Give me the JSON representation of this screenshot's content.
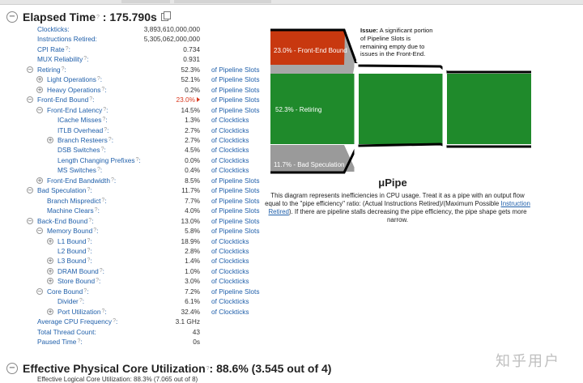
{
  "elapsed": {
    "title": "Elapsed Time",
    "value": "175.790s"
  },
  "metrics": [
    {
      "name": "Clockticks:",
      "value": "3,893,610,000,000",
      "unit": "",
      "indent": 0,
      "toggle": "",
      "hot": false
    },
    {
      "name": "Instructions Retired:",
      "value": "5,305,062,000,000",
      "unit": "",
      "indent": 0,
      "toggle": "",
      "hot": false
    },
    {
      "name": "CPI Rate",
      "value": "0.734",
      "unit": "",
      "indent": 0,
      "toggle": "",
      "hot": false,
      "help": true
    },
    {
      "name": "MUX Reliability",
      "value": "0.931",
      "unit": "",
      "indent": 0,
      "toggle": "",
      "hot": false,
      "help": true
    },
    {
      "name": "Retiring",
      "value": "52.3%",
      "unit": "of Pipeline Slots",
      "indent": 0,
      "toggle": "−",
      "hot": false,
      "help": true
    },
    {
      "name": "Light Operations",
      "value": "52.1%",
      "unit": "of Pipeline Slots",
      "indent": 1,
      "toggle": "+",
      "hot": false,
      "help": true
    },
    {
      "name": "Heavy Operations",
      "value": "0.2%",
      "unit": "of Pipeline Slots",
      "indent": 1,
      "toggle": "+",
      "hot": false,
      "help": true
    },
    {
      "name": "Front-End Bound",
      "value": "23.0%",
      "unit": "of Pipeline Slots",
      "indent": 0,
      "toggle": "−",
      "hot": true,
      "help": true
    },
    {
      "name": "Front-End Latency",
      "value": "14.5%",
      "unit": "of Pipeline Slots",
      "indent": 1,
      "toggle": "−",
      "hot": false,
      "help": true
    },
    {
      "name": "ICache Misses",
      "value": "1.3%",
      "unit": "of Clockticks",
      "indent": 2,
      "toggle": "",
      "hot": false,
      "help": true
    },
    {
      "name": "ITLB Overhead",
      "value": "2.7%",
      "unit": "of Clockticks",
      "indent": 2,
      "toggle": "",
      "hot": false,
      "help": true
    },
    {
      "name": "Branch Resteers",
      "value": "2.7%",
      "unit": "of Clockticks",
      "indent": 2,
      "toggle": "+",
      "hot": false,
      "help": true
    },
    {
      "name": "DSB Switches",
      "value": "4.5%",
      "unit": "of Clockticks",
      "indent": 2,
      "toggle": "",
      "hot": false,
      "help": true
    },
    {
      "name": "Length Changing Prefixes",
      "value": "0.0%",
      "unit": "of Clockticks",
      "indent": 2,
      "toggle": "",
      "hot": false,
      "help": true
    },
    {
      "name": "MS Switches",
      "value": "0.4%",
      "unit": "of Clockticks",
      "indent": 2,
      "toggle": "",
      "hot": false,
      "help": true
    },
    {
      "name": "Front-End Bandwidth",
      "value": "8.5%",
      "unit": "of Pipeline Slots",
      "indent": 1,
      "toggle": "+",
      "hot": false,
      "help": true
    },
    {
      "name": "Bad Speculation",
      "value": "11.7%",
      "unit": "of Pipeline Slots",
      "indent": 0,
      "toggle": "−",
      "hot": false,
      "help": true
    },
    {
      "name": "Branch Mispredict",
      "value": "7.7%",
      "unit": "of Pipeline Slots",
      "indent": 1,
      "toggle": "",
      "hot": false,
      "help": true
    },
    {
      "name": "Machine Clears",
      "value": "4.0%",
      "unit": "of Pipeline Slots",
      "indent": 1,
      "toggle": "",
      "hot": false,
      "help": true
    },
    {
      "name": "Back-End Bound",
      "value": "13.0%",
      "unit": "of Pipeline Slots",
      "indent": 0,
      "toggle": "−",
      "hot": false,
      "help": true
    },
    {
      "name": "Memory Bound",
      "value": "5.8%",
      "unit": "of Pipeline Slots",
      "indent": 1,
      "toggle": "−",
      "hot": false,
      "help": true
    },
    {
      "name": "L1 Bound",
      "value": "18.9%",
      "unit": "of Clockticks",
      "indent": 2,
      "toggle": "+",
      "hot": false,
      "help": true
    },
    {
      "name": "L2 Bound",
      "value": "2.8%",
      "unit": "of Clockticks",
      "indent": 2,
      "toggle": "",
      "hot": false,
      "help": true
    },
    {
      "name": "L3 Bound",
      "value": "1.4%",
      "unit": "of Clockticks",
      "indent": 2,
      "toggle": "+",
      "hot": false,
      "help": true
    },
    {
      "name": "DRAM Bound",
      "value": "1.0%",
      "unit": "of Clockticks",
      "indent": 2,
      "toggle": "+",
      "hot": false,
      "help": true
    },
    {
      "name": "Store Bound",
      "value": "3.0%",
      "unit": "of Clockticks",
      "indent": 2,
      "toggle": "+",
      "hot": false,
      "help": true
    },
    {
      "name": "Core Bound",
      "value": "7.2%",
      "unit": "of Pipeline Slots",
      "indent": 1,
      "toggle": "−",
      "hot": false,
      "help": true
    },
    {
      "name": "Divider",
      "value": "6.1%",
      "unit": "of Clockticks",
      "indent": 2,
      "toggle": "",
      "hot": false,
      "help": true
    },
    {
      "name": "Port Utilization",
      "value": "32.4%",
      "unit": "of Clockticks",
      "indent": 2,
      "toggle": "+",
      "hot": false,
      "help": true
    },
    {
      "name": "Average CPU Frequency",
      "value": "3.1 GHz",
      "unit": "",
      "indent": 0,
      "toggle": "",
      "hot": false,
      "help": true
    },
    {
      "name": "Total Thread Count:",
      "value": "43",
      "unit": "",
      "indent": 0,
      "toggle": "",
      "hot": false
    },
    {
      "name": "Paused Time",
      "value": "0s",
      "unit": "",
      "indent": 0,
      "toggle": "",
      "hot": false,
      "help": true
    }
  ],
  "pipe": {
    "title": "μPipe",
    "frontend_label": "23.0% - Front-End Bound",
    "retiring_label": "52.3% - Retiring",
    "badspec_label": "11.7% - Bad Speculation",
    "issue_bold": "Issue:",
    "issue_lines": [
      " A significant portion",
      "of Pipeline Slots is",
      "remaining empty due to",
      "issues in the Front-End."
    ],
    "desc_1": "This diagram represents inefficiencies in CPU usage. Treat it as a pipe with an output flow equal to the \"pipe efficiency\" ratio: (Actual Instructions Retired)/(Maximum Possible ",
    "desc_link": "Instruction Retired",
    "desc_2": "). If there are pipeline stalls decreasing the pipe efficiency, the pipe shape gets more narrow.",
    "colors": {
      "frontend": "#c8380f",
      "retiring": "#1f8a2b",
      "bad": "#9a9a9a",
      "backend": "#a7a7a7"
    }
  },
  "physical": {
    "title": "Effective Physical Core Utilization",
    "value": "88.6% (3.545 out of 4)"
  },
  "logical_sub": "Effective Logical Core Utilization: 88.3% (7.065 out of 8)",
  "watermark": "知乎用户"
}
